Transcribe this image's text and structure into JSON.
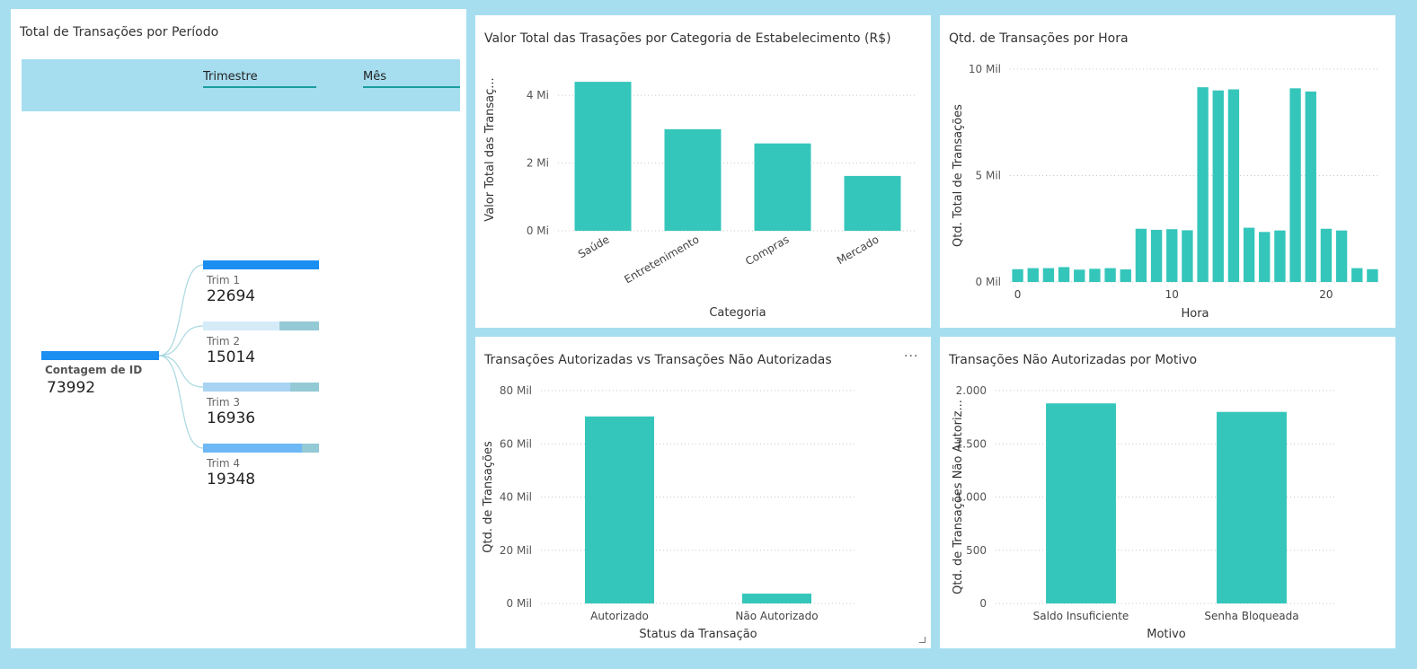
{
  "panels": {
    "period": {
      "title": "Total de Transações por Período",
      "header_levels": [
        "Trimestre",
        "Mês"
      ],
      "root": {
        "label": "Contagem de ID",
        "value": "73992"
      },
      "nodes": [
        {
          "label": "Trim 1",
          "value": "22694",
          "fraction": 1.0
        },
        {
          "label": "Trim 2",
          "value": "15014",
          "fraction": 0.66
        },
        {
          "label": "Trim 3",
          "value": "16936",
          "fraction": 0.75
        },
        {
          "label": "Trim 4",
          "value": "19348",
          "fraction": 0.85
        }
      ]
    },
    "category": {
      "title": "Valor Total das Trasações por Categoria de Estabelecimento (R$)"
    },
    "hour": {
      "title": "Qtd. de Transações por Hora"
    },
    "status": {
      "title": "Transações Autorizadas vs Transações Não Autorizadas",
      "more_icon": "···"
    },
    "reason": {
      "title": "Transações Não Autorizadas por Motivo"
    }
  },
  "colors": {
    "bar": "#35c6bb",
    "background": "#a6def0",
    "node_full": "#1b8ef2",
    "node_light_track": "#94c9d6"
  },
  "chart_data": [
    {
      "type": "bar",
      "title": "Valor Total das Trasações por Categoria de Estabelecimento (R$)",
      "xlabel": "Categoria",
      "ylabel": "Valor Total das Transaç...",
      "categories": [
        "Saúde",
        "Entretenimento",
        "Compras",
        "Mercado"
      ],
      "values": [
        4400000,
        3000000,
        2580000,
        1620000
      ],
      "ylim": [
        0,
        4800000
      ],
      "yticks": [
        0,
        2000000,
        4000000
      ],
      "ytick_labels": [
        "0 Mi",
        "2 Mi",
        "4 Mi"
      ],
      "grid": true
    },
    {
      "type": "bar",
      "title": "Qtd. de Transações por Hora",
      "xlabel": "Hora",
      "ylabel": "Qtd. Total de Transações",
      "x": [
        0,
        1,
        2,
        3,
        4,
        5,
        6,
        7,
        8,
        9,
        10,
        11,
        12,
        13,
        14,
        15,
        16,
        17,
        18,
        19,
        20,
        21,
        22,
        23
      ],
      "values": [
        600,
        650,
        650,
        700,
        580,
        620,
        650,
        590,
        2500,
        2450,
        2480,
        2430,
        9150,
        9000,
        9050,
        2550,
        2350,
        2420,
        9100,
        8950,
        2500,
        2420,
        650,
        600
      ],
      "ylim": [
        0,
        10000
      ],
      "yticks": [
        0,
        5000,
        10000
      ],
      "ytick_labels": [
        "0 Mil",
        "5 Mil",
        "10 Mil"
      ],
      "xticks": [
        0,
        10,
        20
      ],
      "xtick_labels": [
        "0",
        "10",
        "20"
      ],
      "grid": true
    },
    {
      "type": "bar",
      "title": "Transações Autorizadas vs Transações Não Autorizadas",
      "xlabel": "Status da Transação",
      "ylabel": "Qtd. de Transações",
      "categories": [
        "Autorizado",
        "Não Autorizado"
      ],
      "values": [
        70300,
        3700
      ],
      "ylim": [
        0,
        80000
      ],
      "yticks": [
        0,
        20000,
        40000,
        60000,
        80000
      ],
      "ytick_labels": [
        "0 Mil",
        "20 Mil",
        "40 Mil",
        "60 Mil",
        "80 Mil"
      ],
      "grid": true
    },
    {
      "type": "bar",
      "title": "Transações Não Autorizadas por Motivo",
      "xlabel": "Motivo",
      "ylabel": "Qtd. de Transações Não Autoriz...",
      "categories": [
        "Saldo Insuficiente",
        "Senha Bloqueada"
      ],
      "values": [
        1880,
        1800
      ],
      "ylim": [
        0,
        2000
      ],
      "yticks": [
        0,
        500,
        1000,
        1500,
        2000
      ],
      "ytick_labels": [
        "0",
        "500",
        "1.000",
        "1.500",
        "2.000"
      ],
      "grid": true
    }
  ]
}
